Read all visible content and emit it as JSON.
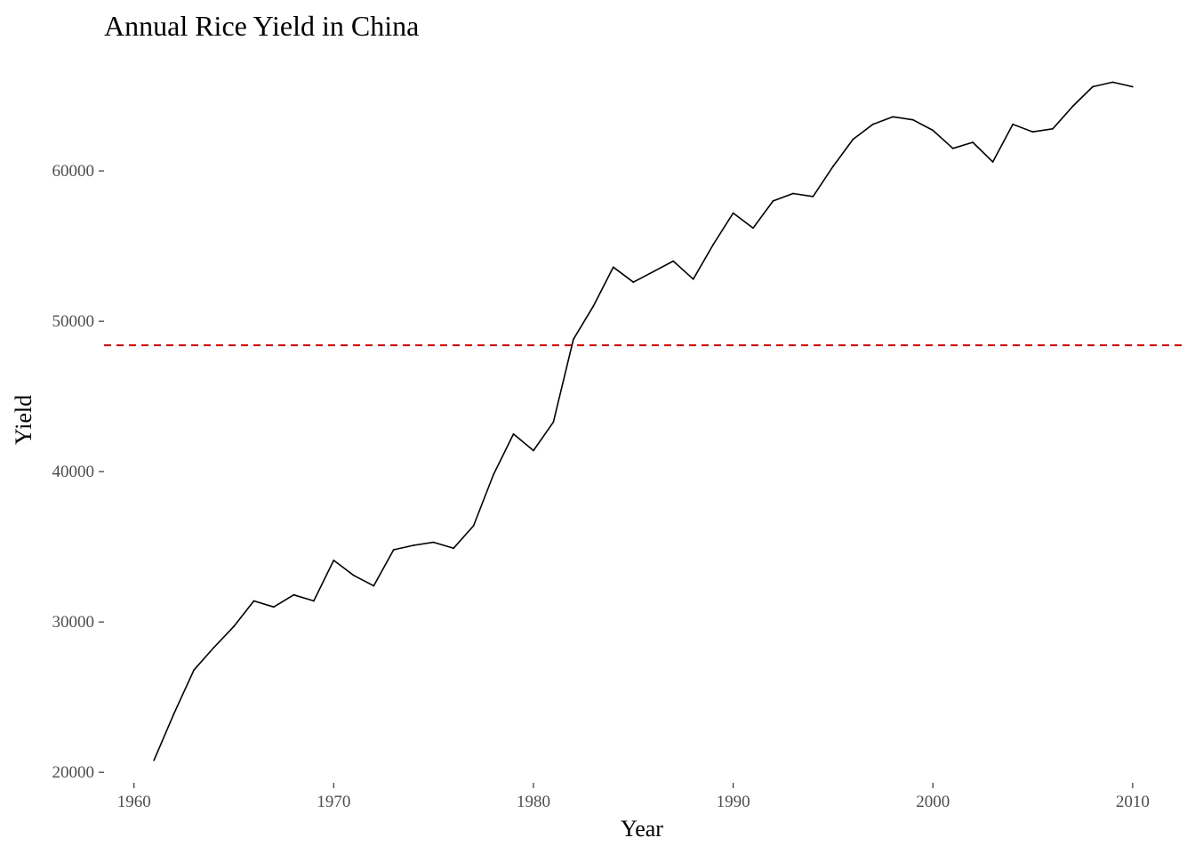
{
  "chart_data": {
    "type": "line",
    "title": "Annual Rice Yield in China",
    "xlabel": "Year",
    "ylabel": "Yield",
    "xlim": [
      1958.5,
      2012.5
    ],
    "ylim": [
      19300,
      67700
    ],
    "x_ticks": [
      1960,
      1970,
      1980,
      1990,
      2000,
      2010
    ],
    "y_ticks": [
      20000,
      30000,
      40000,
      50000,
      60000
    ],
    "x_tick_labels": [
      "1960",
      "1970",
      "1980",
      "1990",
      "2000",
      "2010"
    ],
    "y_tick_labels": [
      "20000",
      "30000",
      "40000",
      "50000",
      "60000"
    ],
    "grid": false,
    "legend": "none",
    "series": [
      {
        "line_color": "#000000",
        "x": [
          1961,
          1962,
          1963,
          1964,
          1965,
          1966,
          1967,
          1968,
          1969,
          1970,
          1971,
          1972,
          1973,
          1974,
          1975,
          1976,
          1977,
          1978,
          1979,
          1980,
          1981,
          1982,
          1983,
          1984,
          1985,
          1986,
          1987,
          1988,
          1989,
          1990,
          1991,
          1992,
          1993,
          1994,
          1995,
          1996,
          1997,
          1998,
          1999,
          2000,
          2001,
          2002,
          2003,
          2004,
          2005,
          2006,
          2007,
          2008,
          2009,
          2010
        ],
        "y": [
          20800,
          23900,
          26800,
          28300,
          29700,
          31400,
          31000,
          31800,
          31400,
          34100,
          33100,
          32400,
          34800,
          35100,
          35300,
          34900,
          36400,
          39800,
          42500,
          41400,
          43300,
          48800,
          51000,
          53600,
          52600,
          53300,
          54000,
          52800,
          55100,
          57200,
          56200,
          58000,
          58500,
          58300,
          60300,
          62100,
          63100,
          63600,
          63400,
          62700,
          61500,
          61900,
          60600,
          63100,
          62600,
          62800,
          64300,
          65600,
          65900,
          65600
        ]
      }
    ],
    "reference_line": {
      "orientation": "horizontal",
      "y": 48400,
      "style": "dashed",
      "color": "#cc0000"
    }
  }
}
